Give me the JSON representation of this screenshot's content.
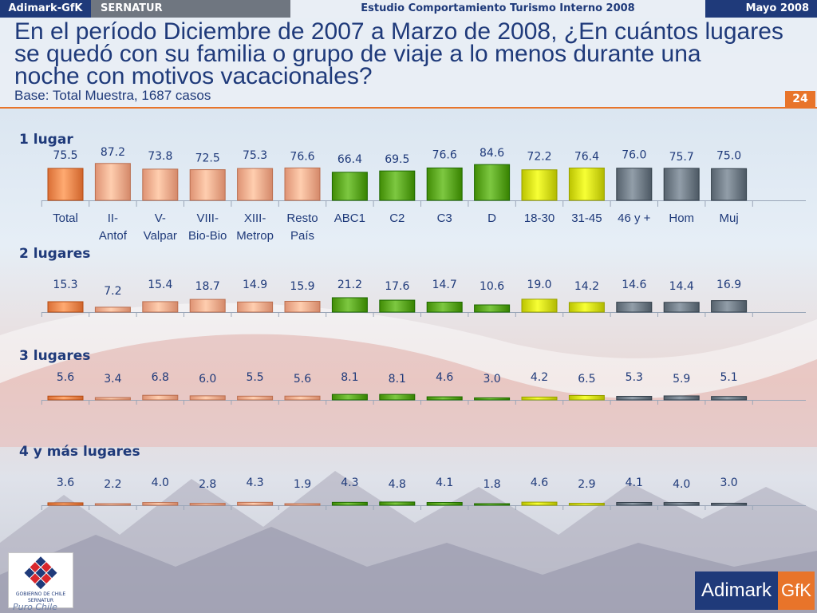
{
  "topbar": {
    "brand": "Adimark-GfK",
    "sernatur": "SERNATUR",
    "study": "Estudio Comportamiento Turismo Interno 2008",
    "date": "Mayo 2008"
  },
  "header": {
    "title_lines": [
      "En el período Diciembre de 2007 a Marzo de 2008, ¿En cuántos lugares",
      "se quedó con su familia o grupo de viaje a lo menos durante una",
      "noche con motivos vacacionales?"
    ],
    "subtitle": "Base: Total Muestra, 1687 casos",
    "page_number": "24"
  },
  "colors": {
    "orange": "#f2874e",
    "salmon": "#f7ab8c",
    "green": "#5aa51e",
    "yellow": "#d4dc12",
    "gray": "#6f7b86",
    "text": "#1f3a7a",
    "accent": "#e8742a"
  },
  "chart_data": {
    "type": "bar",
    "categories": [
      [
        "Total"
      ],
      [
        "II-",
        "Antof"
      ],
      [
        "V-",
        "Valpar"
      ],
      [
        "VIII-",
        "Bio-Bio"
      ],
      [
        "XIII-",
        "Metrop"
      ],
      [
        "Resto",
        "País"
      ],
      [
        "ABC1"
      ],
      [
        "C2"
      ],
      [
        "C3"
      ],
      [
        "D"
      ],
      [
        "18-30"
      ],
      [
        "31-45"
      ],
      [
        "46 y +"
      ],
      [
        "Hom"
      ],
      [
        "Muj"
      ]
    ],
    "category_groups": [
      "orange",
      "salmon",
      "salmon",
      "salmon",
      "salmon",
      "salmon",
      "green",
      "green",
      "green",
      "green",
      "yellow",
      "yellow",
      "gray",
      "gray",
      "gray"
    ],
    "series": [
      {
        "name": "1 lugar",
        "values": [
          75.5,
          87.2,
          73.8,
          72.5,
          75.3,
          76.6,
          66.4,
          69.5,
          76.6,
          84.6,
          72.2,
          76.4,
          76.0,
          75.7,
          75.0
        ]
      },
      {
        "name": "2 lugares",
        "values": [
          15.3,
          7.2,
          15.4,
          18.7,
          14.9,
          15.9,
          21.2,
          17.6,
          14.7,
          10.6,
          19.0,
          14.2,
          14.6,
          14.4,
          16.9
        ]
      },
      {
        "name": "3  lugares",
        "values": [
          5.6,
          3.4,
          6.8,
          6.0,
          5.5,
          5.6,
          8.1,
          8.1,
          4.6,
          3.0,
          4.2,
          6.5,
          5.3,
          5.9,
          5.1
        ]
      },
      {
        "name": "4 y más  lugares",
        "values": [
          3.6,
          2.2,
          4.0,
          2.8,
          4.3,
          1.9,
          4.3,
          4.8,
          4.1,
          1.8,
          4.6,
          2.9,
          4.1,
          4.0,
          3.0
        ]
      }
    ],
    "unit": "%"
  },
  "logos": {
    "gobierno": "GOBIERNO DE CHILE",
    "gobierno_sub": "SERNATUR",
    "puro_chile": "Puro Chile",
    "adimark": "Adimark",
    "gfk": "GfK"
  }
}
